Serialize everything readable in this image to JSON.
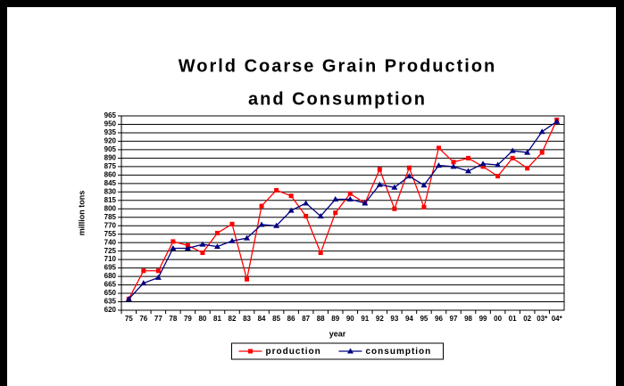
{
  "chart_data": {
    "type": "line",
    "title": "World Coarse Grain Production",
    "subtitle": "and Consumption",
    "x_label": "year",
    "y_label": "million tons",
    "categories": [
      "75",
      "76",
      "77",
      "78",
      "79",
      "80",
      "81",
      "82",
      "83",
      "84",
      "85",
      "86",
      "87",
      "88",
      "89",
      "90",
      "91",
      "92",
      "93",
      "94",
      "95",
      "96",
      "97",
      "98",
      "99",
      "00",
      "01",
      "02",
      "03*",
      "04*"
    ],
    "series": [
      {
        "name": "production",
        "color": "#ff0000",
        "marker": "square",
        "values": [
          640,
          690,
          690,
          742,
          735,
          722,
          757,
          773,
          675,
          805,
          833,
          823,
          787,
          722,
          793,
          827,
          810,
          870,
          800,
          873,
          803,
          908,
          883,
          890,
          875,
          858,
          890,
          872,
          900,
          958
        ]
      },
      {
        "name": "consumption",
        "color": "#000080",
        "marker": "triangle",
        "values": [
          640,
          668,
          678,
          730,
          730,
          737,
          733,
          743,
          748,
          772,
          770,
          797,
          810,
          787,
          817,
          817,
          810,
          843,
          838,
          858,
          842,
          877,
          875,
          867,
          880,
          878,
          903,
          900,
          937,
          955
        ]
      }
    ],
    "ylim": [
      620,
      965
    ],
    "yticks": [
      620,
      635,
      650,
      665,
      680,
      695,
      710,
      725,
      740,
      755,
      770,
      785,
      800,
      815,
      830,
      845,
      860,
      875,
      890,
      905,
      920,
      935,
      950,
      965
    ],
    "grid": true,
    "legend": "bottom"
  }
}
